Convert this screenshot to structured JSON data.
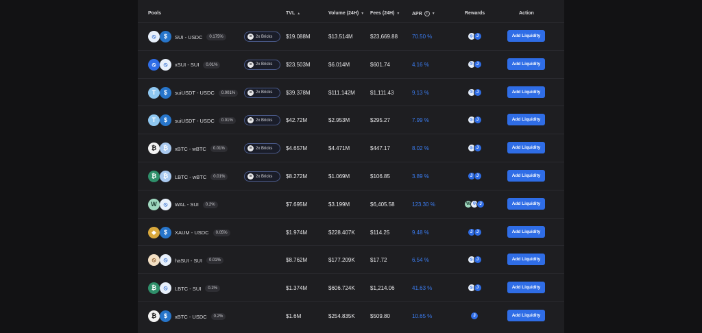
{
  "header": {
    "pools": "Pools",
    "tvl": "TVL",
    "volume": "Volume (24H)",
    "fees": "Fees (24H)",
    "apr": "APR",
    "rewards": "Rewards",
    "action": "Action"
  },
  "rows": [
    {
      "pair": "SUI - USDC",
      "fee": "0.175%",
      "bricks": "2x Bricks",
      "tvl": "$19.088M",
      "volume": "$13.514M",
      "fees": "$23,669.88",
      "apr": "70.50 %",
      "action": "Add Liquidity"
    },
    {
      "pair": "xSUI - SUI",
      "fee": "0.01%",
      "bricks": "2x Bricks",
      "tvl": "$23.503M",
      "volume": "$6.014M",
      "fees": "$601.74",
      "apr": "4.16 %",
      "action": "Add Liquidity"
    },
    {
      "pair": "suiUSDT - USDC",
      "fee": "0.001%",
      "bricks": "2x Bricks",
      "tvl": "$39.378M",
      "volume": "$111.142M",
      "fees": "$1,111.43",
      "apr": "9.13 %",
      "action": "Add Liquidity"
    },
    {
      "pair": "suiUSDT - USDC",
      "fee": "0.01%",
      "bricks": "2x Bricks",
      "tvl": "$42.72M",
      "volume": "$2.953M",
      "fees": "$295.27",
      "apr": "7.99 %",
      "action": "Add Liquidity"
    },
    {
      "pair": "xBTC - wBTC",
      "fee": "0.01%",
      "bricks": "2x Bricks",
      "tvl": "$4.657M",
      "volume": "$4.471M",
      "fees": "$447.17",
      "apr": "8.02 %",
      "action": "Add Liquidity"
    },
    {
      "pair": "LBTC - wBTC",
      "fee": "0.01%",
      "bricks": "2x Bricks",
      "tvl": "$8.272M",
      "volume": "$1.069M",
      "fees": "$106.85",
      "apr": "3.89 %",
      "action": "Add Liquidity"
    },
    {
      "pair": "WAL - SUI",
      "fee": "0.2%",
      "bricks": "",
      "tvl": "$7.695M",
      "volume": "$3.199M",
      "fees": "$6,405.58",
      "apr": "123.30 %",
      "action": "Add Liquidity"
    },
    {
      "pair": "XAUM - USDC",
      "fee": "0.05%",
      "bricks": "",
      "tvl": "$1.974M",
      "volume": "$228.407K",
      "fees": "$114.25",
      "apr": "9.48 %",
      "action": "Add Liquidity"
    },
    {
      "pair": "haSUI - SUI",
      "fee": "0.01%",
      "bricks": "",
      "tvl": "$8.762M",
      "volume": "$177.209K",
      "fees": "$17.72",
      "apr": "6.54 %",
      "action": "Add Liquidity"
    },
    {
      "pair": "LBTC - SUI",
      "fee": "0.2%",
      "bricks": "",
      "tvl": "$1.374M",
      "volume": "$606.724K",
      "fees": "$1,214.06",
      "apr": "41.63 %",
      "action": "Add Liquidity"
    },
    {
      "pair": "xBTC - USDC",
      "fee": "0.2%",
      "bricks": "",
      "tvl": "$1.6M",
      "volume": "$254.835K",
      "fees": "$509.80",
      "apr": "10.65 %",
      "action": "Add Liquidity"
    }
  ],
  "token_icons": [
    [
      "sui-token-icon",
      "usdc-token-icon"
    ],
    [
      "xsui-token-icon",
      "sui-token-icon"
    ],
    [
      "usdt-token-icon",
      "usdc-token-icon"
    ],
    [
      "usdt-token-icon",
      "usdc-token-icon"
    ],
    [
      "xbtc-token-icon",
      "wbtc-token-icon"
    ],
    [
      "lbtc-token-icon",
      "wbtc-token-icon"
    ],
    [
      "wal-token-icon",
      "sui-token-icon"
    ],
    [
      "xaum-token-icon",
      "usdc-token-icon"
    ],
    [
      "hasui-token-icon",
      "sui-token-icon"
    ],
    [
      "lbtc-token-icon",
      "sui-token-icon"
    ],
    [
      "xbtc-token-icon",
      "usdc-token-icon"
    ]
  ],
  "colors": {
    "accent": "#2f6de6",
    "apr": "#3b7cf0",
    "panel": "#1e1e21",
    "background": "#121214"
  }
}
